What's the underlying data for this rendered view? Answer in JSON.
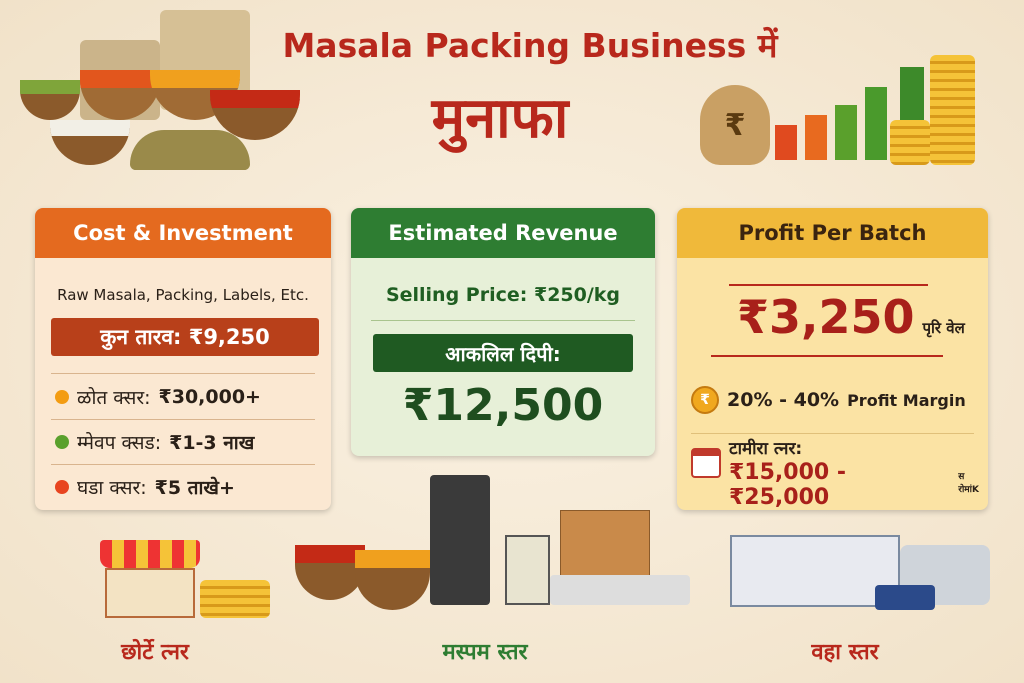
{
  "header": {
    "title_line1": "Masala Packing Business में",
    "title_line2": "मुनाफा"
  },
  "cost": {
    "title": "Cost & Investment",
    "subtitle": "Raw Masala, Packing, Labels, Etc.",
    "total": "कुन तारव: ₹9,250",
    "items": [
      {
        "label": "ळोत क्सर:",
        "value": "₹30,000+",
        "color": "#f39c12"
      },
      {
        "label": "म्मेवप क्सड:",
        "value": "₹1-3 नाख",
        "color": "#5aa02c"
      },
      {
        "label": "घडा क्सर:",
        "value": "₹5 ताखे+",
        "color": "#e8441f"
      }
    ]
  },
  "revenue": {
    "title": "Estimated Revenue",
    "selling_price": "Selling Price: ₹250/kg",
    "estimated_label": "आकलिल दिपी:",
    "amount": "₹12,500"
  },
  "profit": {
    "title": "Profit Per Batch",
    "amount": "₹3,250",
    "per_batch": "पृरि वेल",
    "margin_range": "20% - 40%",
    "margin_label": "Profit Margin",
    "monthly_label": "टामीरा त्नर:",
    "monthly_range": "₹15,000 - ₹25,000",
    "monthly_suffix": "स रोमांK"
  },
  "scales": [
    {
      "label": "छोर्टे त्नर",
      "color": "#b8281c"
    },
    {
      "label": "मस्पम स्तर",
      "color": "#2e7d32"
    },
    {
      "label": "वहा स्तर",
      "color": "#b8281c"
    }
  ],
  "icons": {
    "rupee": "₹"
  }
}
